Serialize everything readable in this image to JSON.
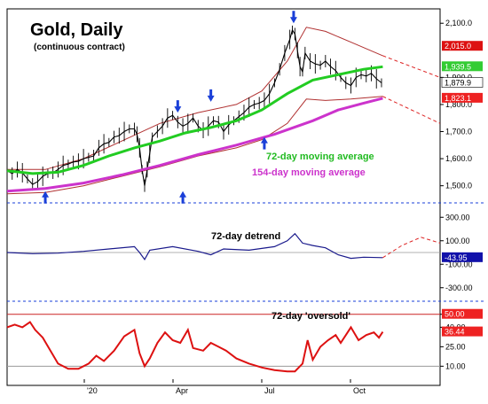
{
  "chart_data": {
    "type": "line",
    "title": "Gold, Daily",
    "subtitle": "(continuous contract)",
    "x_ticks": [
      "'20",
      "Apr",
      "Jul",
      "Oct"
    ],
    "panels": [
      {
        "name": "price",
        "y_ticks": [
          "2,100.0",
          "1,900.0",
          "1,800.0",
          "1,700.0",
          "1,600.0",
          "1,500.0"
        ],
        "ylim": [
          1440,
          2140
        ],
        "series_labels": [
          {
            "text": "72-day moving average",
            "color": "#22bb22"
          },
          {
            "text": "154-day moving average",
            "color": "#cc33cc"
          }
        ],
        "value_tags": [
          {
            "text": "2,015.0",
            "value": 2015,
            "bg": "#dd1111",
            "fg": "#ffffff"
          },
          {
            "text": "1,939.5",
            "value": 1939.5,
            "bg": "#33cc33",
            "fg": "#ffffff"
          },
          {
            "text": "1,879.9",
            "value": 1879.9,
            "bg": "#ffffff",
            "fg": "#000000"
          },
          {
            "text": "1,823.1",
            "value": 1823.1,
            "bg": "#ee2222",
            "fg": "#ffffff"
          }
        ],
        "price_path": [
          [
            0,
            1555
          ],
          [
            4,
            1545
          ],
          [
            8,
            1560
          ],
          [
            12,
            1548
          ],
          [
            16,
            1525
          ],
          [
            20,
            1505
          ],
          [
            24,
            1515
          ],
          [
            28,
            1535
          ],
          [
            32,
            1545
          ],
          [
            36,
            1548
          ],
          [
            40,
            1560
          ],
          [
            44,
            1575
          ],
          [
            48,
            1580
          ],
          [
            52,
            1588
          ],
          [
            56,
            1590
          ],
          [
            60,
            1600
          ],
          [
            64,
            1605
          ],
          [
            68,
            1610
          ],
          [
            72,
            1640
          ],
          [
            76,
            1655
          ],
          [
            80,
            1660
          ],
          [
            84,
            1680
          ],
          [
            88,
            1685
          ],
          [
            92,
            1700
          ],
          [
            96,
            1710
          ],
          [
            100,
            1710
          ],
          [
            102,
            1690
          ],
          [
            104,
            1640
          ],
          [
            106,
            1560
          ],
          [
            108,
            1500
          ],
          [
            110,
            1560
          ],
          [
            112,
            1620
          ],
          [
            114,
            1680
          ],
          [
            118,
            1700
          ],
          [
            122,
            1720
          ],
          [
            126,
            1750
          ],
          [
            130,
            1760
          ],
          [
            134,
            1735
          ],
          [
            138,
            1720
          ],
          [
            142,
            1730
          ],
          [
            146,
            1750
          ],
          [
            150,
            1720
          ],
          [
            154,
            1705
          ],
          [
            158,
            1720
          ],
          [
            162,
            1740
          ],
          [
            166,
            1735
          ],
          [
            170,
            1700
          ],
          [
            174,
            1725
          ],
          [
            178,
            1740
          ],
          [
            182,
            1755
          ],
          [
            186,
            1770
          ],
          [
            190,
            1790
          ],
          [
            194,
            1800
          ],
          [
            198,
            1805
          ],
          [
            202,
            1815
          ],
          [
            206,
            1840
          ],
          [
            210,
            1880
          ],
          [
            214,
            1930
          ],
          [
            218,
            1990
          ],
          [
            222,
            2040
          ],
          [
            224,
            2075
          ],
          [
            226,
            2060
          ],
          [
            228,
            2000
          ],
          [
            230,
            1940
          ],
          [
            232,
            1920
          ],
          [
            234,
            1990
          ],
          [
            238,
            1960
          ],
          [
            242,
            1950
          ],
          [
            246,
            1945
          ],
          [
            250,
            1960
          ],
          [
            254,
            1940
          ],
          [
            258,
            1925
          ],
          [
            262,
            1900
          ],
          [
            266,
            1880
          ],
          [
            270,
            1870
          ],
          [
            274,
            1900
          ],
          [
            278,
            1910
          ],
          [
            282,
            1905
          ],
          [
            286,
            1915
          ],
          [
            290,
            1895
          ],
          [
            294,
            1880
          ]
        ],
        "ma72_path": [
          [
            0,
            1555
          ],
          [
            20,
            1545
          ],
          [
            40,
            1550
          ],
          [
            60,
            1575
          ],
          [
            80,
            1610
          ],
          [
            100,
            1640
          ],
          [
            120,
            1665
          ],
          [
            140,
            1695
          ],
          [
            160,
            1715
          ],
          [
            180,
            1740
          ],
          [
            200,
            1780
          ],
          [
            220,
            1840
          ],
          [
            240,
            1890
          ],
          [
            260,
            1910
          ],
          [
            280,
            1930
          ],
          [
            295,
            1939.5
          ]
        ],
        "ma154_path": [
          [
            0,
            1480
          ],
          [
            30,
            1490
          ],
          [
            60,
            1510
          ],
          [
            90,
            1540
          ],
          [
            120,
            1575
          ],
          [
            150,
            1615
          ],
          [
            180,
            1650
          ],
          [
            210,
            1690
          ],
          [
            240,
            1740
          ],
          [
            260,
            1780
          ],
          [
            280,
            1805
          ],
          [
            295,
            1823.1
          ]
        ],
        "upper_band": [
          [
            0,
            1560
          ],
          [
            30,
            1560
          ],
          [
            60,
            1600
          ],
          [
            90,
            1665
          ],
          [
            120,
            1730
          ],
          [
            150,
            1770
          ],
          [
            180,
            1800
          ],
          [
            200,
            1850
          ],
          [
            220,
            1960
          ],
          [
            235,
            2085
          ],
          [
            250,
            2070
          ],
          [
            270,
            2030
          ],
          [
            295,
            1980
          ]
        ],
        "lower_band": [
          [
            0,
            1470
          ],
          [
            30,
            1475
          ],
          [
            60,
            1500
          ],
          [
            90,
            1535
          ],
          [
            120,
            1570
          ],
          [
            150,
            1610
          ],
          [
            180,
            1640
          ],
          [
            200,
            1670
          ],
          [
            220,
            1730
          ],
          [
            235,
            1820
          ],
          [
            250,
            1815
          ],
          [
            270,
            1820
          ],
          [
            295,
            1830
          ]
        ],
        "upper_proj": [
          [
            295,
            1980
          ],
          [
            340,
            1900
          ]
        ],
        "lower_proj": [
          [
            295,
            1830
          ],
          [
            340,
            1730
          ]
        ],
        "up_arrows": [
          [
            30,
            1480
          ],
          [
            138,
            1480
          ],
          [
            202,
            1680
          ]
        ],
        "down_arrows": [
          [
            134,
            1770
          ],
          [
            160,
            1810
          ],
          [
            225,
            2100
          ]
        ]
      },
      {
        "name": "72-day detrend",
        "label": "72-day detrend",
        "y_ticks": [
          "300.00",
          "100.00",
          "-100.00",
          "-300.00"
        ],
        "ylim": [
          -400,
          400
        ],
        "value_tags": [
          {
            "text": "-43.95",
            "value": -43.95,
            "bg": "#1111aa",
            "fg": "#ffffff"
          }
        ],
        "path": [
          [
            0,
            0
          ],
          [
            20,
            -10
          ],
          [
            40,
            -5
          ],
          [
            60,
            10
          ],
          [
            80,
            30
          ],
          [
            100,
            50
          ],
          [
            104,
            0
          ],
          [
            108,
            -60
          ],
          [
            112,
            20
          ],
          [
            130,
            50
          ],
          [
            150,
            10
          ],
          [
            160,
            -20
          ],
          [
            170,
            30
          ],
          [
            190,
            20
          ],
          [
            210,
            50
          ],
          [
            220,
            100
          ],
          [
            226,
            160
          ],
          [
            232,
            80
          ],
          [
            240,
            60
          ],
          [
            250,
            40
          ],
          [
            260,
            -20
          ],
          [
            270,
            -50
          ],
          [
            280,
            -40
          ],
          [
            295,
            -43.95
          ]
        ],
        "proj": [
          [
            295,
            -43.95
          ],
          [
            310,
            60
          ],
          [
            325,
            130
          ],
          [
            340,
            80
          ]
        ]
      },
      {
        "name": "72-day 'oversold'",
        "label": "72-day 'oversold'",
        "y_ticks": [
          "50.00",
          "40.00",
          "25.00",
          "10.00"
        ],
        "ylim": [
          0,
          58
        ],
        "hlines": [
          50,
          10
        ],
        "value_tags": [
          {
            "text": "50.00",
            "value": 50,
            "bg": "#ee2222",
            "fg": "#ffffff"
          },
          {
            "text": "36.44",
            "value": 36.44,
            "bg": "#ee2222",
            "fg": "#ffffff"
          }
        ],
        "path": [
          [
            0,
            40
          ],
          [
            6,
            42
          ],
          [
            12,
            40
          ],
          [
            18,
            44
          ],
          [
            22,
            38
          ],
          [
            28,
            32
          ],
          [
            34,
            22
          ],
          [
            40,
            12
          ],
          [
            48,
            8
          ],
          [
            56,
            8
          ],
          [
            64,
            12
          ],
          [
            70,
            18
          ],
          [
            76,
            14
          ],
          [
            84,
            22
          ],
          [
            92,
            33
          ],
          [
            100,
            38
          ],
          [
            104,
            20
          ],
          [
            108,
            10
          ],
          [
            112,
            16
          ],
          [
            118,
            28
          ],
          [
            124,
            36
          ],
          [
            130,
            30
          ],
          [
            136,
            28
          ],
          [
            142,
            38
          ],
          [
            146,
            24
          ],
          [
            154,
            22
          ],
          [
            160,
            28
          ],
          [
            166,
            25
          ],
          [
            172,
            22
          ],
          [
            180,
            16
          ],
          [
            190,
            12
          ],
          [
            200,
            9
          ],
          [
            210,
            7
          ],
          [
            220,
            6
          ],
          [
            226,
            6
          ],
          [
            232,
            12
          ],
          [
            236,
            30
          ],
          [
            240,
            15
          ],
          [
            246,
            25
          ],
          [
            252,
            30
          ],
          [
            258,
            34
          ],
          [
            262,
            28
          ],
          [
            266,
            34
          ],
          [
            270,
            40
          ],
          [
            276,
            30
          ],
          [
            282,
            34
          ],
          [
            288,
            36
          ],
          [
            292,
            32
          ],
          [
            295,
            36.44
          ]
        ]
      }
    ]
  }
}
